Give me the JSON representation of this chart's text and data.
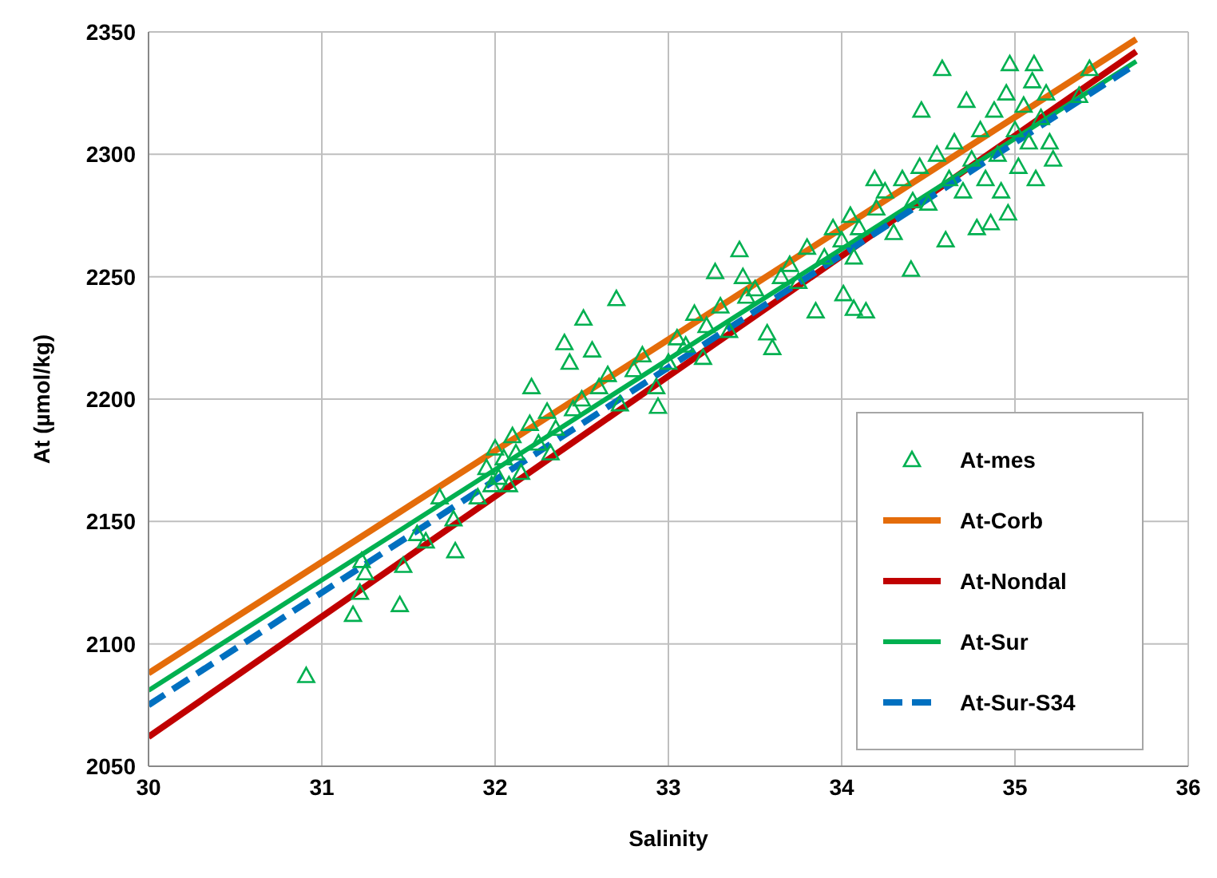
{
  "chart_data": {
    "type": "scatter",
    "xlabel": "Salinity",
    "ylabel": "At (µmol/kg)",
    "xlim": [
      30,
      36
    ],
    "xticks": [
      30,
      31,
      32,
      33,
      34,
      35,
      36
    ],
    "ylim": [
      2050,
      2350
    ],
    "yticks": [
      2050,
      2100,
      2150,
      2200,
      2250,
      2300,
      2350
    ],
    "grid": true,
    "legend": "bottom right",
    "series": [
      {
        "name": "At-mes",
        "marker": "triangle",
        "color": "#00b050",
        "x": [
          30.91,
          31.18,
          31.22,
          31.25,
          31.23,
          31.45,
          31.47,
          31.55,
          31.6,
          31.68,
          31.76,
          31.77,
          31.9,
          31.95,
          31.98,
          32.0,
          32.02,
          32.05,
          32.08,
          32.1,
          32.12,
          32.15,
          32.2,
          32.21,
          32.25,
          32.3,
          32.32,
          32.35,
          32.4,
          32.43,
          32.45,
          32.5,
          32.51,
          32.56,
          32.6,
          32.65,
          32.7,
          32.72,
          32.8,
          32.85,
          32.93,
          32.94,
          33.0,
          33.05,
          33.1,
          33.15,
          33.2,
          33.22,
          33.27,
          33.3,
          33.35,
          33.41,
          33.43,
          33.45,
          33.5,
          33.57,
          33.6,
          33.65,
          33.7,
          33.75,
          33.8,
          33.85,
          33.9,
          33.95,
          34.0,
          34.01,
          34.05,
          34.07,
          34.07,
          34.1,
          34.14,
          34.19,
          34.2,
          34.25,
          34.3,
          34.35,
          34.4,
          34.41,
          34.45,
          34.46,
          34.5,
          34.55,
          34.58,
          34.6,
          34.62,
          34.65,
          34.7,
          34.72,
          34.75,
          34.78,
          34.8,
          34.83,
          34.86,
          34.88,
          34.9,
          34.92,
          34.95,
          34.96,
          34.97,
          35.0,
          35.02,
          35.05,
          35.08,
          35.1,
          35.11,
          35.12,
          35.15,
          35.18,
          35.2,
          35.22,
          35.37,
          35.43
        ],
        "values": [
          2087,
          2112,
          2121,
          2129,
          2134,
          2116,
          2132,
          2145,
          2142,
          2160,
          2151,
          2138,
          2160,
          2172,
          2165,
          2180,
          2168,
          2176,
          2165,
          2185,
          2178,
          2170,
          2190,
          2205,
          2182,
          2195,
          2178,
          2188,
          2223,
          2215,
          2196,
          2200,
          2233,
          2220,
          2205,
          2210,
          2241,
          2198,
          2212,
          2218,
          2205,
          2197,
          2215,
          2225,
          2222,
          2235,
          2217,
          2230,
          2252,
          2238,
          2228,
          2261,
          2250,
          2242,
          2245,
          2227,
          2221,
          2250,
          2255,
          2248,
          2262,
          2236,
          2258,
          2270,
          2265,
          2243,
          2275,
          2258,
          2237,
          2270,
          2236,
          2290,
          2278,
          2285,
          2268,
          2290,
          2253,
          2281,
          2295,
          2318,
          2280,
          2300,
          2335,
          2265,
          2290,
          2305,
          2285,
          2322,
          2298,
          2270,
          2310,
          2290,
          2272,
          2318,
          2300,
          2285,
          2325,
          2276,
          2337,
          2310,
          2295,
          2320,
          2305,
          2330,
          2337,
          2290,
          2315,
          2325,
          2305,
          2298,
          2324,
          2335
        ]
      },
      {
        "name": "At-Corb",
        "type": "line",
        "color": "#e46c0a",
        "line_style": "solid",
        "x": [
          30,
          35.7
        ],
        "values": [
          2088,
          2347
        ]
      },
      {
        "name": "At-Nondal",
        "type": "line",
        "color": "#c00000",
        "line_style": "solid",
        "x": [
          30,
          35.7
        ],
        "values": [
          2062,
          2342
        ]
      },
      {
        "name": "At-Sur",
        "type": "line",
        "color": "#00b050",
        "line_style": "solid",
        "x": [
          30,
          35.7
        ],
        "values": [
          2081,
          2338
        ]
      },
      {
        "name": "At-Sur-S34",
        "type": "line",
        "color": "#0070c0",
        "line_style": "dashed",
        "x": [
          30,
          35.7
        ],
        "values": [
          2075,
          2337
        ]
      }
    ]
  }
}
